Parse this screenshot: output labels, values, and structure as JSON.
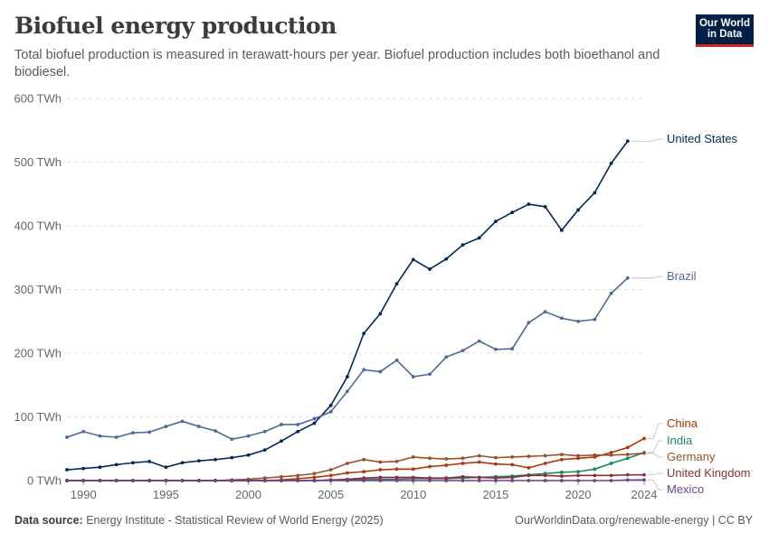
{
  "header": {
    "title": "Biofuel energy production",
    "subtitle": "Total biofuel production is measured in terawatt-hours per year. Biofuel production includes both bioethanol and biodiesel."
  },
  "logo": {
    "line1": "Our World",
    "line2": "in Data",
    "bg_color": "#002147",
    "accent_color": "#ce261e"
  },
  "footer": {
    "source_label": "Data source:",
    "source_text": "Energy Institute - Statistical Review of World Energy (2025)",
    "url": "OurWorldinData.org/renewable-energy | CC BY"
  },
  "chart_data": {
    "type": "line",
    "title": "Biofuel energy production",
    "xlim": [
      1990,
      2024
    ],
    "ylim": [
      0,
      600
    ],
    "y_ticks": [
      0,
      100,
      200,
      300,
      400,
      500,
      600
    ],
    "y_tick_labels": [
      "0 TWh",
      "100 TWh",
      "200 TWh",
      "300 TWh",
      "400 TWh",
      "500 TWh",
      "600 TWh"
    ],
    "x_ticks": [
      1990,
      1995,
      2000,
      2005,
      2010,
      2015,
      2020,
      2024
    ],
    "x_tick_labels": [
      "1990",
      "1995",
      "2000",
      "2005",
      "2010",
      "2015",
      "2020",
      "2024"
    ],
    "grid": "horizontal dashed",
    "legend": "right end labels",
    "x": [
      1989,
      1990,
      1991,
      1992,
      1993,
      1994,
      1995,
      1996,
      1997,
      1998,
      1999,
      2000,
      2001,
      2002,
      2003,
      2004,
      2005,
      2006,
      2007,
      2008,
      2009,
      2010,
      2011,
      2012,
      2013,
      2014,
      2015,
      2016,
      2017,
      2018,
      2019,
      2020,
      2021,
      2022,
      2023,
      2024
    ],
    "series": [
      {
        "name": "United States",
        "color": "#00295b",
        "values": [
          17,
          19,
          21,
          25,
          28,
          30,
          21,
          28,
          31,
          33,
          36,
          40,
          48,
          62,
          77,
          90,
          118,
          163,
          231,
          262,
          309,
          347,
          332,
          348,
          370,
          381,
          407,
          421,
          434,
          430,
          393,
          425,
          452,
          498,
          533,
          null
        ]
      },
      {
        "name": "Brazil",
        "color": "#4c6a9c",
        "values": [
          68,
          77,
          70,
          68,
          75,
          76,
          85,
          93,
          85,
          78,
          65,
          70,
          77,
          88,
          88,
          97,
          108,
          140,
          174,
          171,
          189,
          163,
          167,
          194,
          204,
          219,
          206,
          207,
          248,
          265,
          255,
          250,
          253,
          294,
          318,
          null
        ]
      },
      {
        "name": "China",
        "color": "#b13507",
        "values": [
          0,
          0,
          0,
          0,
          0,
          0,
          0,
          0,
          0,
          0,
          0,
          0,
          0,
          1,
          3,
          5,
          8,
          12,
          14,
          17,
          18,
          18,
          22,
          24,
          27,
          29,
          26,
          25,
          20,
          27,
          33,
          35,
          37,
          44,
          52,
          66
        ]
      },
      {
        "name": "India",
        "color": "#18895f",
        "values": [
          0,
          0,
          0,
          0,
          0,
          0,
          0,
          0,
          0,
          0,
          0,
          0,
          0,
          0,
          0,
          0,
          1,
          1,
          2,
          2,
          2,
          3,
          3,
          3,
          4,
          5,
          6,
          7,
          9,
          11,
          13,
          14,
          18,
          27,
          35,
          44
        ]
      },
      {
        "name": "Germany",
        "color": "#9a5129",
        "values": [
          0,
          0,
          0,
          0,
          0,
          0,
          0,
          0,
          0,
          0,
          1,
          2,
          4,
          6,
          8,
          11,
          17,
          27,
          33,
          29,
          30,
          37,
          35,
          34,
          35,
          39,
          36,
          37,
          38,
          39,
          41,
          39,
          40,
          40,
          41,
          43
        ]
      },
      {
        "name": "United Kingdom",
        "color": "#883039",
        "values": [
          0,
          0,
          0,
          0,
          0,
          0,
          0,
          0,
          0,
          0,
          0,
          0,
          0,
          0,
          0,
          0,
          1,
          2,
          4,
          5,
          5,
          5,
          4,
          4,
          6,
          5,
          4,
          5,
          8,
          8,
          7,
          8,
          8,
          8,
          9,
          9
        ]
      },
      {
        "name": "Mexico",
        "color": "#6d3e91",
        "values": [
          0,
          0,
          0,
          0,
          0,
          0,
          0,
          0,
          0,
          0,
          0,
          0,
          0,
          0,
          0,
          0,
          0,
          0,
          0,
          0,
          0,
          0,
          0,
          0,
          0,
          0,
          0,
          0,
          0,
          0,
          0,
          0,
          0,
          0,
          1,
          1
        ]
      }
    ]
  }
}
